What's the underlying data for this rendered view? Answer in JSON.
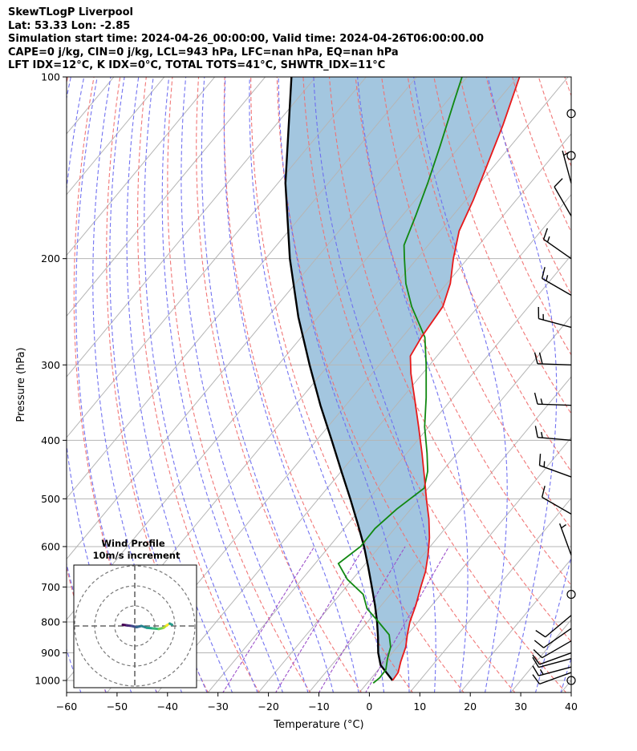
{
  "header": {
    "title": "SkewTLogP Liverpool",
    "location": "Lat: 53.33   Lon: -2.85",
    "times": "Simulation start time: 2024-04-26_00:00:00, Valid time: 2024-04-26T06:00:00.00",
    "params": "CAPE=0 j/kg, CIN=0 j/kg, LCL=943 hPa, LFC=nan hPa, EQ=nan hPa",
    "indices": "LFT IDX=12°C, K IDX=0°C, TOTAL TOTS=41°C, SHWTR_IDX=11°C"
  },
  "chart_data": {
    "type": "line",
    "xlabel": "Temperature (°C)",
    "ylabel": "Pressure (hPa)",
    "xlim": [
      -60,
      40
    ],
    "ylim": [
      1050,
      100
    ],
    "y_scale": "log",
    "skew": true,
    "grid": true,
    "x_ticks": [
      -60,
      -50,
      -40,
      -30,
      -20,
      -10,
      0,
      10,
      20,
      30,
      40
    ],
    "x_tick_labels": [
      "−60",
      "−50",
      "−40",
      "−30",
      "−20",
      "−10",
      "0",
      "10",
      "20",
      "30",
      "40"
    ],
    "y_ticks": [
      100,
      200,
      300,
      400,
      500,
      600,
      700,
      800,
      900,
      1000
    ],
    "y_tick_labels": [
      "100",
      "200",
      "300",
      "400",
      "500",
      "600",
      "700",
      "800",
      "900",
      "1000"
    ],
    "colors": {
      "temperature": "#e8191a",
      "dewpoint": "#118811",
      "parcel": "#000000",
      "shade": "#a3c6df",
      "dry_adiabat": "#f07070",
      "moist_adiabat": "#6b6bf0",
      "mixing_ratio": "#9b4fc9",
      "isotherm": "#b5b5b5"
    },
    "temperature": [
      {
        "p": 1000,
        "t": 4.6
      },
      {
        "p": 970,
        "t": 4.4
      },
      {
        "p": 930,
        "t": 3.1
      },
      {
        "p": 880,
        "t": 1.7
      },
      {
        "p": 840,
        "t": 0.0
      },
      {
        "p": 800,
        "t": -1.6
      },
      {
        "p": 750,
        "t": -3.2
      },
      {
        "p": 700,
        "t": -5.2
      },
      {
        "p": 660,
        "t": -6.8
      },
      {
        "p": 620,
        "t": -9.0
      },
      {
        "p": 580,
        "t": -11.6
      },
      {
        "p": 540,
        "t": -14.8
      },
      {
        "p": 500,
        "t": -18.6
      },
      {
        "p": 460,
        "t": -22.6
      },
      {
        "p": 420,
        "t": -27.0
      },
      {
        "p": 380,
        "t": -32.0
      },
      {
        "p": 340,
        "t": -37.6
      },
      {
        "p": 310,
        "t": -42.3
      },
      {
        "p": 290,
        "t": -45.3
      },
      {
        "p": 270,
        "t": -46.2
      },
      {
        "p": 240,
        "t": -47.0
      },
      {
        "p": 220,
        "t": -49.3
      },
      {
        "p": 200,
        "t": -52.8
      },
      {
        "p": 180,
        "t": -56.2
      },
      {
        "p": 160,
        "t": -58.5
      },
      {
        "p": 140,
        "t": -61.5
      },
      {
        "p": 120,
        "t": -65.0
      },
      {
        "p": 100,
        "t": -69.6
      }
    ],
    "dewpoint": [
      {
        "p": 1010,
        "t": 1.2
      },
      {
        "p": 990,
        "t": 1.6
      },
      {
        "p": 960,
        "t": 1.5
      },
      {
        "p": 920,
        "t": 0.0
      },
      {
        "p": 880,
        "t": -1.3
      },
      {
        "p": 840,
        "t": -3.6
      },
      {
        "p": 800,
        "t": -7.8
      },
      {
        "p": 760,
        "t": -12.3
      },
      {
        "p": 720,
        "t": -15.4
      },
      {
        "p": 680,
        "t": -21.0
      },
      {
        "p": 640,
        "t": -25.4
      },
      {
        "p": 600,
        "t": -23.8
      },
      {
        "p": 560,
        "t": -23.9
      },
      {
        "p": 520,
        "t": -22.8
      },
      {
        "p": 480,
        "t": -20.8
      },
      {
        "p": 450,
        "t": -22.9
      },
      {
        "p": 420,
        "t": -26.0
      },
      {
        "p": 380,
        "t": -30.8
      },
      {
        "p": 340,
        "t": -35.3
      },
      {
        "p": 300,
        "t": -40.7
      },
      {
        "p": 270,
        "t": -45.5
      },
      {
        "p": 240,
        "t": -53.2
      },
      {
        "p": 220,
        "t": -58.1
      },
      {
        "p": 200,
        "t": -62.5
      },
      {
        "p": 190,
        "t": -64.8
      },
      {
        "p": 170,
        "t": -67.3
      },
      {
        "p": 150,
        "t": -70.3
      },
      {
        "p": 130,
        "t": -74.0
      },
      {
        "p": 110,
        "t": -78.5
      },
      {
        "p": 100,
        "t": -81.0
      }
    ],
    "parcel": [
      {
        "p": 1000,
        "t": 4.6
      },
      {
        "p": 943,
        "t": -0.3
      },
      {
        "p": 900,
        "t": -2.8
      },
      {
        "p": 850,
        "t": -5.3
      },
      {
        "p": 800,
        "t": -8.1
      },
      {
        "p": 750,
        "t": -11.3
      },
      {
        "p": 700,
        "t": -14.9
      },
      {
        "p": 650,
        "t": -18.8
      },
      {
        "p": 600,
        "t": -23.1
      },
      {
        "p": 550,
        "t": -28.1
      },
      {
        "p": 500,
        "t": -33.7
      },
      {
        "p": 450,
        "t": -40.0
      },
      {
        "p": 400,
        "t": -47.0
      },
      {
        "p": 350,
        "t": -55.0
      },
      {
        "p": 300,
        "t": -63.8
      },
      {
        "p": 250,
        "t": -73.9
      },
      {
        "p": 200,
        "t": -85.2
      },
      {
        "p": 150,
        "t": -98.5
      },
      {
        "p": 100,
        "t": -114.8
      }
    ],
    "winds": [
      {
        "p": 1000,
        "calm": true
      },
      {
        "p": 970,
        "speed_kt": 10,
        "dir_deg": 250
      },
      {
        "p": 950,
        "speed_kt": 15,
        "dir_deg": 255
      },
      {
        "p": 920,
        "speed_kt": 10,
        "dir_deg": 255
      },
      {
        "p": 900,
        "speed_kt": 10,
        "dir_deg": 250
      },
      {
        "p": 860,
        "speed_kt": 10,
        "dir_deg": 240
      },
      {
        "p": 820,
        "speed_kt": 10,
        "dir_deg": 235
      },
      {
        "p": 780,
        "speed_kt": 10,
        "dir_deg": 230
      },
      {
        "p": 720,
        "calm": true
      },
      {
        "p": 620,
        "speed_kt": 5,
        "dir_deg": 340
      },
      {
        "p": 530,
        "speed_kt": 10,
        "dir_deg": 300
      },
      {
        "p": 460,
        "speed_kt": 15,
        "dir_deg": 290
      },
      {
        "p": 400,
        "speed_kt": 15,
        "dir_deg": 275
      },
      {
        "p": 350,
        "speed_kt": 15,
        "dir_deg": 272
      },
      {
        "p": 300,
        "speed_kt": 20,
        "dir_deg": 272
      },
      {
        "p": 260,
        "speed_kt": 15,
        "dir_deg": 285
      },
      {
        "p": 230,
        "speed_kt": 15,
        "dir_deg": 300
      },
      {
        "p": 200,
        "speed_kt": 15,
        "dir_deg": 305
      },
      {
        "p": 170,
        "speed_kt": 10,
        "dir_deg": 330
      },
      {
        "p": 150,
        "speed_kt": 5,
        "dir_deg": 345
      },
      {
        "p": 135,
        "calm": true
      },
      {
        "p": 115,
        "calm": true
      }
    ],
    "inset": {
      "title": "Wind Profile",
      "subtitle": "10m/s increment",
      "hodograph": [
        {
          "u": -2.0,
          "v": 0.2
        },
        {
          "u": -1.3,
          "v": 0.1
        },
        {
          "u": -0.5,
          "v": 0.0
        },
        {
          "u": 0.3,
          "v": -0.2
        },
        {
          "u": 1.1,
          "v": 0.0
        },
        {
          "u": 2.0,
          "v": -0.3
        },
        {
          "u": 3.0,
          "v": -0.4
        },
        {
          "u": 4.0,
          "v": -0.5
        },
        {
          "u": 4.8,
          "v": -0.3
        },
        {
          "u": 5.3,
          "v": 0.1
        },
        {
          "u": 5.8,
          "v": 0.4
        },
        {
          "u": 6.2,
          "v": 0.2
        }
      ]
    }
  }
}
